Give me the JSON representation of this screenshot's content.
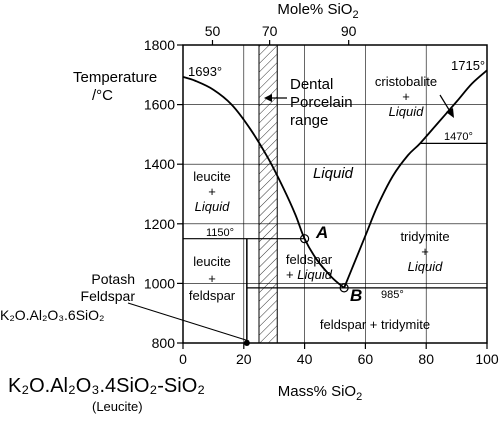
{
  "chart_data": {
    "type": "phase-diagram",
    "x_bottom": {
      "label": "Mass% SiO",
      "label_sub": "2",
      "ticks": [
        0,
        20,
        40,
        60,
        80,
        100
      ],
      "range": [
        0,
        100
      ]
    },
    "x_top": {
      "label": "Mole% SiO",
      "label_sub": "2",
      "ticks": [
        {
          "label": "50",
          "mass": 9.7
        },
        {
          "label": "70",
          "mass": 28.5
        },
        {
          "label": "90",
          "mass": 54.5
        }
      ]
    },
    "y": {
      "label_line1": "Temperature",
      "label_line2": "/°C",
      "ticks": [
        800,
        1000,
        1200,
        1400,
        1600,
        1800
      ],
      "range": [
        800,
        1800
      ]
    },
    "liquidus_left": [
      [
        0,
        1693
      ],
      [
        4,
        1680
      ],
      [
        10,
        1650
      ],
      [
        16,
        1600
      ],
      [
        22,
        1520
      ],
      [
        28,
        1420
      ],
      [
        33,
        1320
      ],
      [
        37,
        1230
      ],
      [
        40,
        1150
      ],
      [
        44,
        1080
      ],
      [
        49,
        1020
      ],
      [
        53,
        985
      ]
    ],
    "liquidus_right": [
      [
        53,
        985
      ],
      [
        56,
        1060
      ],
      [
        60,
        1160
      ],
      [
        64,
        1260
      ],
      [
        69,
        1360
      ],
      [
        74,
        1430
      ],
      [
        78,
        1470
      ],
      [
        84,
        1540
      ],
      [
        90,
        1610
      ],
      [
        95,
        1670
      ],
      [
        100,
        1715
      ]
    ],
    "isotherms": [
      {
        "T": 1150,
        "from": 0,
        "to": 40,
        "label": "1150°"
      },
      {
        "T": 985,
        "from": 21,
        "to": 100,
        "label": "985°"
      },
      {
        "T": 1470,
        "from": 78,
        "to": 100,
        "label": "1470°"
      }
    ],
    "solid_line": {
      "x": 21,
      "from": 800,
      "to": 1150
    },
    "porcelain_band": {
      "from": 25,
      "to": 31,
      "T_from": 800,
      "T_to": 1800
    },
    "melting_points": [
      {
        "label": "1693°",
        "x": 0,
        "T": 1693
      },
      {
        "label": "1715°",
        "x": 100,
        "T": 1715
      }
    ],
    "points": [
      {
        "name": "A",
        "x": 40,
        "T": 1150
      },
      {
        "name": "B",
        "x": 53,
        "T": 985
      }
    ],
    "feldspar_point": {
      "x": 21,
      "T": 800
    }
  },
  "labels": {
    "dental_1": "Dental",
    "dental_2": "Porcelain",
    "dental_3": "range",
    "cristobalite": "cristobalite",
    "plus": "+",
    "liquid": "Liquid",
    "leucite": "leucite",
    "feldspar": "feldspar",
    "tridymite": "tridymite",
    "feldspar_tridymite": "feldspar + tridymite",
    "potash_1": "Potash",
    "potash_2": "Feldspar",
    "formula_feldspar": "K₂O.Al₂O₃.6SiO₂",
    "formula_leucite": "K₂O.Al₂O₃.4SiO₂-SiO₂",
    "leucite_paren": "(Leucite)"
  }
}
